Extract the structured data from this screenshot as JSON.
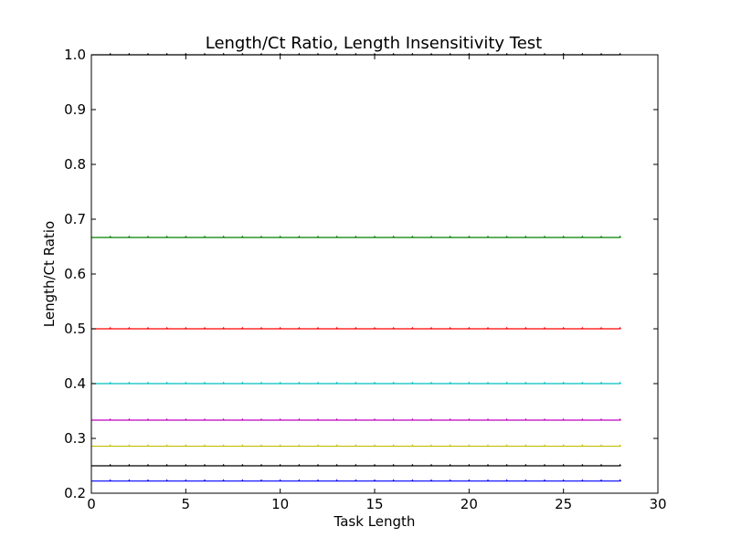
{
  "chart_data": {
    "type": "line",
    "title": "Length/Ct Ratio, Length Insensitivity Test",
    "xlabel": "Task Length",
    "ylabel": "Length/Ct Ratio",
    "xlim": [
      0,
      30
    ],
    "ylim": [
      0.2,
      1.0
    ],
    "xticks": [
      0,
      5,
      10,
      15,
      20,
      25,
      30
    ],
    "yticks": [
      0.2,
      0.3,
      0.4,
      0.5,
      0.6,
      0.7,
      0.8,
      0.9,
      1.0
    ],
    "xtick_labels": [
      "0",
      "5",
      "10",
      "15",
      "20",
      "25",
      "30"
    ],
    "ytick_labels": [
      "0.2",
      "0.3",
      "0.4",
      "0.5",
      "0.6",
      "0.7",
      "0.8",
      "0.9",
      "1.0"
    ],
    "grid": false,
    "x_start": 0,
    "x_end": 28,
    "marker_x": [
      1,
      2,
      3,
      4,
      5,
      6,
      7,
      8,
      9,
      10,
      11,
      12,
      13,
      14,
      15,
      16,
      17,
      18,
      19,
      20,
      21,
      22,
      23,
      24,
      25,
      26,
      27,
      28
    ],
    "series": [
      {
        "value": 1.0,
        "color": "#000000"
      },
      {
        "value": 0.6667,
        "color": "#008000"
      },
      {
        "value": 0.5,
        "color": "#ff0000"
      },
      {
        "value": 0.4,
        "color": "#00bfbf"
      },
      {
        "value": 0.3333,
        "color": "#bf00bf"
      },
      {
        "value": 0.2857,
        "color": "#bfbf00"
      },
      {
        "value": 0.25,
        "color": "#000000"
      },
      {
        "value": 0.2222,
        "color": "#0000ff"
      }
    ]
  }
}
